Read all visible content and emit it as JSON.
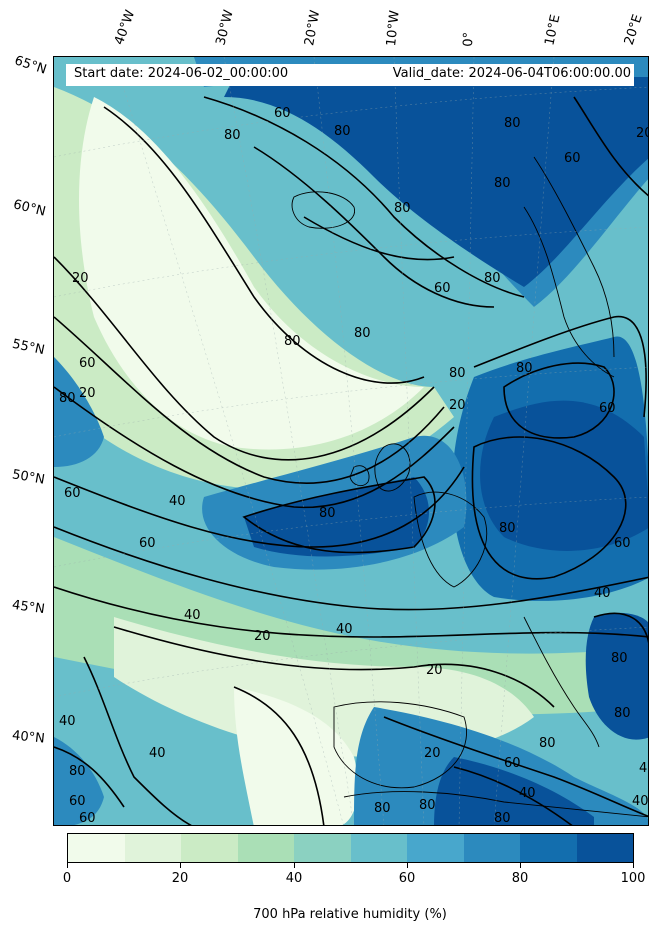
{
  "header": {
    "start_date": "Start date: 2024-06-02_00:00:00",
    "valid_date": "Valid_date: 2024-06-04T06:00:00.00"
  },
  "map": {
    "variable": "700 hPa relative humidity (%)",
    "latitude_labels": [
      "65°N",
      "60°N",
      "55°N",
      "50°N",
      "45°N",
      "40°N"
    ],
    "longitude_labels": [
      "40°W",
      "30°W",
      "20°W",
      "10°W",
      "0°",
      "10°E",
      "20°E"
    ],
    "contour_labels": [
      "20",
      "40",
      "60",
      "80"
    ],
    "coastline_color": "#000000",
    "contour_color": "#000000"
  },
  "colorbar": {
    "title": "700 hPa relative humidity (%)",
    "tick_labels": [
      "0",
      "20",
      "40",
      "60",
      "80",
      "100"
    ],
    "range": [
      0,
      100
    ],
    "levels": [
      0,
      10,
      20,
      30,
      40,
      50,
      60,
      70,
      80,
      90,
      100
    ],
    "colors": [
      "#f1fbeb",
      "#e0f3da",
      "#cbebc5",
      "#aadfb6",
      "#8bd1c1",
      "#68bfcb",
      "#48a7cc",
      "#2c8abe",
      "#136eae",
      "#08529a"
    ]
  }
}
